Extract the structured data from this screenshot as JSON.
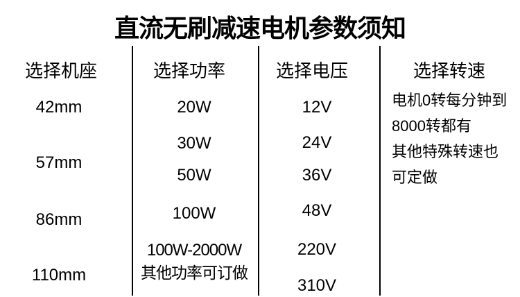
{
  "title": "直流无刷减速电机参数须知",
  "colors": {
    "text": "#000000",
    "background": "#ffffff",
    "divider": "#000000"
  },
  "columns": [
    {
      "header": "选择机座",
      "items": [
        "42mm",
        "57mm",
        "86mm",
        "110mm"
      ]
    },
    {
      "header": "选择功率",
      "items": [
        "20W",
        "30W",
        "50W",
        "100W",
        "100W-2000W",
        "其他功率可订做"
      ]
    },
    {
      "header": "选择电压",
      "items": [
        "12V",
        "24V",
        "36V",
        "48V",
        "220V",
        "310V"
      ]
    },
    {
      "header": "选择转速",
      "notes": [
        "电机0转每分钟到",
        "8000转都有",
        "其他特殊转速也",
        "可定做"
      ]
    }
  ]
}
